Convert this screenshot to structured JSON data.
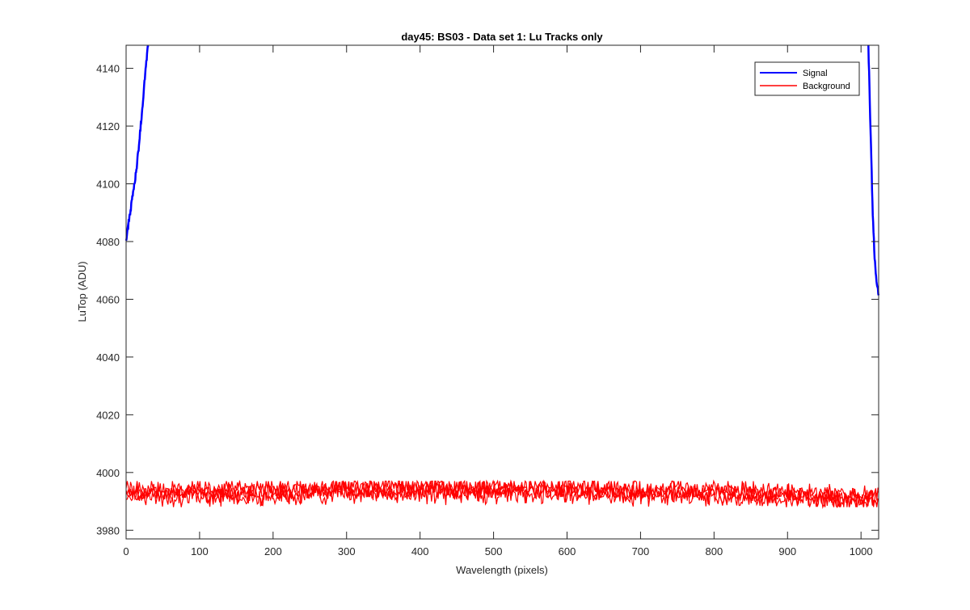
{
  "chart_data": {
    "type": "line",
    "title": "day45: BS03 - Data set 1: Lu Tracks only",
    "xlabel": "Wavelength (pixels)",
    "ylabel": "LuTop (ADU)",
    "xlim": [
      0,
      1024
    ],
    "ylim": [
      3977,
      4148
    ],
    "xticks": [
      0,
      100,
      200,
      300,
      400,
      500,
      600,
      700,
      800,
      900,
      1000
    ],
    "yticks": [
      3980,
      4000,
      4020,
      4040,
      4060,
      4080,
      4100,
      4120,
      4140
    ],
    "grid": false,
    "legend_position": "top-right",
    "series": [
      {
        "name": "Signal",
        "color": "#0000ff",
        "segments": [
          {
            "x": [
              0,
              3,
              6,
              9,
              12,
              15,
              18,
              21,
              24,
              27,
              30
            ],
            "y": [
              4081,
              4086,
              4091,
              4096,
              4101,
              4107,
              4115,
              4123,
              4132,
              4141,
              4148
            ]
          },
          {
            "x": [
              1010,
              1012,
              1014,
              1016,
              1018,
              1020,
              1022,
              1024
            ],
            "y": [
              4148,
              4128,
              4108,
              4090,
              4077,
              4069,
              4065,
              4062
            ]
          }
        ]
      },
      {
        "name": "Background",
        "color": "#ff0000",
        "x": [
          0,
          100,
          200,
          300,
          400,
          500,
          600,
          700,
          800,
          900,
          1000,
          1024
        ],
        "y": [
          3993,
          3993,
          3993,
          3994,
          3994,
          3994,
          3994,
          3993,
          3993,
          3992,
          3991,
          3991
        ],
        "band_low": 3988,
        "band_high": 3997
      }
    ]
  }
}
